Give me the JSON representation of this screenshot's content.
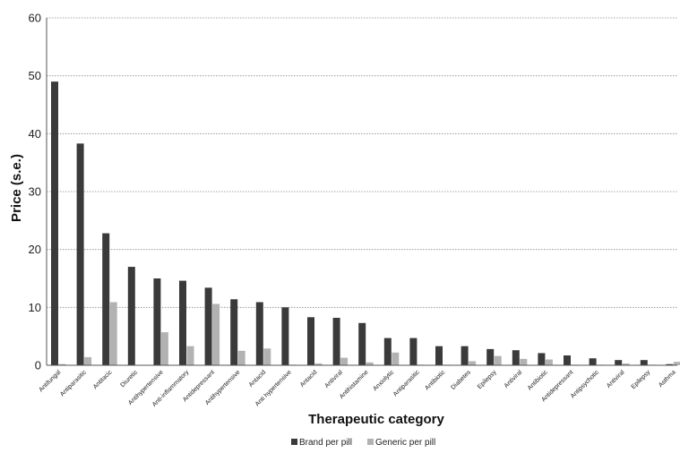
{
  "chart_data": {
    "type": "bar",
    "xlabel": "Therapeutic category",
    "ylabel": "Price (s.e.)",
    "ylim": [
      0,
      60
    ],
    "yticks": [
      0,
      10,
      20,
      30,
      40,
      50,
      60
    ],
    "grid": "horizontal dotted",
    "legend_position": "bottom",
    "categories": [
      "Antifungal",
      "Antiparasitic",
      "Antitacic",
      "Diuretic",
      "Antihypertensive",
      "Anti-inflammatory",
      "Antidepressant",
      "Antihypertensive",
      "Antacid",
      "Anti hypertensive",
      "Antacid",
      "Antiviral",
      "Antihistamine",
      "Anxiolytic",
      "Antiparasitic",
      "Antibiotic",
      "Diabetes",
      "Epilepsy",
      "Antiviral",
      "Antibiotic",
      "Antidepressant",
      "Antipsychotic",
      "Antiviral",
      "Epilepsy",
      "Asthma"
    ],
    "series": [
      {
        "name": "Brand per pill",
        "color": "#3a3a3a",
        "values": [
          49.0,
          38.3,
          22.8,
          17.0,
          15.0,
          14.6,
          13.4,
          11.4,
          10.9,
          10.0,
          8.3,
          8.2,
          7.3,
          4.7,
          4.7,
          3.3,
          3.3,
          2.8,
          2.6,
          2.1,
          1.7,
          1.2,
          0.9,
          0.9,
          0.2
        ]
      },
      {
        "name": "Generic per pill",
        "color": "#b2b2b2",
        "values": [
          0.2,
          1.4,
          10.9,
          0.0,
          5.7,
          3.3,
          10.6,
          2.5,
          2.9,
          0.1,
          0.3,
          1.3,
          0.5,
          2.2,
          0.1,
          0.1,
          0.7,
          1.6,
          1.1,
          1.0,
          0.1,
          0.1,
          0.3,
          0.1,
          0.6
        ]
      }
    ]
  }
}
